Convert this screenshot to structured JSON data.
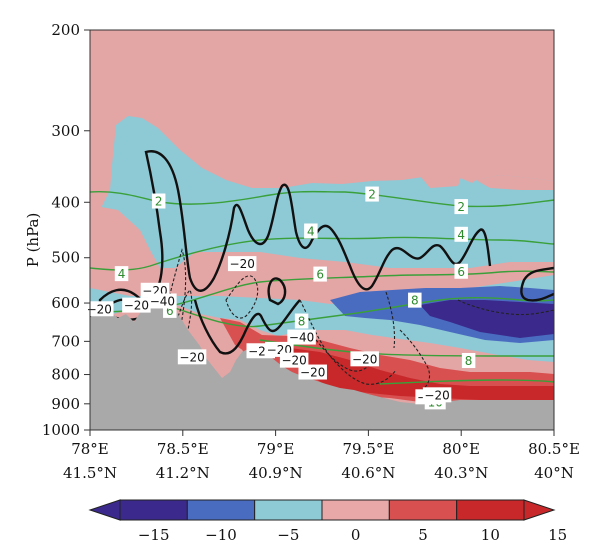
{
  "chart_data": {
    "type": "heatmap",
    "ylabel": "P (hPa)",
    "y_scale": "log",
    "ylim": [
      1000,
      200
    ],
    "y_ticks": [
      "200",
      "300",
      "400",
      "500",
      "600",
      "700",
      "800",
      "900",
      "1000"
    ],
    "y_tick_values": [
      200,
      300,
      400,
      500,
      600,
      700,
      800,
      900,
      1000
    ],
    "xlim": [
      78,
      80.5
    ],
    "x_ticks": [
      {
        "lon": "78°E",
        "lat": "41.5°N",
        "value": 78
      },
      {
        "lon": "78.5°E",
        "lat": "41.2°N",
        "value": 78.5
      },
      {
        "lon": "79°E",
        "lat": "40.9°N",
        "value": 79
      },
      {
        "lon": "79.5°E",
        "lat": "40.6°N",
        "value": 79.5
      },
      {
        "lon": "80°E",
        "lat": "40.3°N",
        "value": 80
      },
      {
        "lon": "80.5°E",
        "lat": "40°N",
        "value": 80.5
      }
    ],
    "colorbar": {
      "labels": [
        "−15",
        "−10",
        "−5",
        "0",
        "5",
        "10",
        "15"
      ],
      "values": [
        -15,
        -10,
        -5,
        0,
        5,
        10,
        15
      ],
      "colors": [
        "#3b2a8c",
        "#4a6cc0",
        "#8ec9d6",
        "#e8a8a8",
        "#d85050",
        "#c8282a"
      ],
      "extend": "both"
    },
    "shading_colors": {
      "below_-10": "#3b2a8c",
      "-10_to_-5": "#4a6cc0",
      "-5_to_0": "#8ec9d6",
      "0_to_5": "#e4a5a5",
      "5_to_10": "#d85050",
      "10_to_15": "#c8282a",
      "terrain": "#a9a9a9"
    },
    "green_contour_labels": [
      {
        "text": "2",
        "x": 78.37,
        "p": 398
      },
      {
        "text": "2",
        "x": 79.52,
        "p": 387
      },
      {
        "text": "2",
        "x": 80.0,
        "p": 407
      },
      {
        "text": "4",
        "x": 78.17,
        "p": 533
      },
      {
        "text": "4",
        "x": 79.19,
        "p": 449
      },
      {
        "text": "4",
        "x": 80.0,
        "p": 455
      },
      {
        "text": "6",
        "x": 78.43,
        "p": 618
      },
      {
        "text": "6",
        "x": 79.24,
        "p": 534
      },
      {
        "text": "6",
        "x": 80.0,
        "p": 528
      },
      {
        "text": "8",
        "x": 79.14,
        "p": 645
      },
      {
        "text": "8",
        "x": 79.75,
        "p": 593
      },
      {
        "text": "8",
        "x": 80.04,
        "p": 756
      },
      {
        "text": "10",
        "x": 79.86,
        "p": 893
      }
    ],
    "black_contour_labels": [
      {
        "text": "−20",
        "x": 78.35,
        "p": 570
      },
      {
        "text": "−40",
        "x": 78.39,
        "p": 595
      },
      {
        "text": "−20",
        "x": 78.25,
        "p": 605
      },
      {
        "text": "−20",
        "x": 78.05,
        "p": 614
      },
      {
        "text": "−20",
        "x": 78.82,
        "p": 512
      },
      {
        "text": "−20",
        "x": 78.55,
        "p": 745
      },
      {
        "text": "−20",
        "x": 78.92,
        "p": 727
      },
      {
        "text": "−40",
        "x": 79.14,
        "p": 688
      },
      {
        "text": "−20",
        "x": 79.02,
        "p": 723
      },
      {
        "text": "−20",
        "x": 79.1,
        "p": 755
      },
      {
        "text": "−20",
        "x": 79.2,
        "p": 792
      },
      {
        "text": "−20",
        "x": 79.48,
        "p": 751
      },
      {
        "text": "−40",
        "x": 79.83,
        "p": 875
      },
      {
        "text": "−20",
        "x": 79.87,
        "p": 868
      }
    ]
  }
}
